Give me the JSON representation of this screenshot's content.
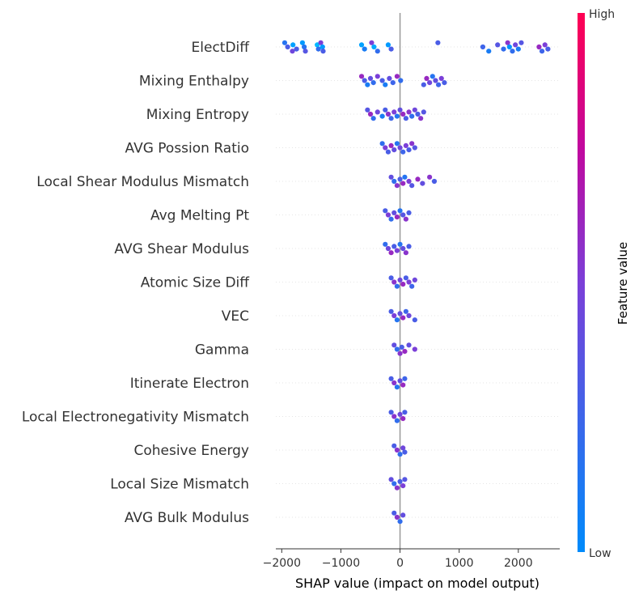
{
  "chart_data": {
    "type": "scatter",
    "xlabel": "SHAP value (impact on model output)",
    "xlim": [
      -2100,
      2700
    ],
    "xticks": [
      {
        "value": -2000,
        "label": "−2000"
      },
      {
        "value": -1000,
        "label": "−1000"
      },
      {
        "value": 0,
        "label": "0"
      },
      {
        "value": 1000,
        "label": "1000"
      },
      {
        "value": 2000,
        "label": "2000"
      }
    ],
    "colorbar": {
      "title": "Feature value",
      "high_label": "High",
      "low_label": "Low",
      "low_color": "#008bfb",
      "high_color": "#ff0052"
    },
    "features": [
      {
        "name": "ElectDiff",
        "points": [
          [
            -1950,
            0.15
          ],
          [
            -1900,
            0.3
          ],
          [
            -1820,
            0.45
          ],
          [
            -1810,
            -0.15
          ],
          [
            -1750,
            0.3
          ],
          [
            -1650,
            -0.1
          ],
          [
            -1620,
            0.15
          ],
          [
            -1600,
            0.35
          ],
          [
            -1400,
            -0.3
          ],
          [
            -1380,
            0.2
          ],
          [
            -1340,
            0.5
          ],
          [
            -1310,
            -0.1
          ],
          [
            -1300,
            0.3
          ],
          [
            -650,
            -0.15
          ],
          [
            -600,
            0.1
          ],
          [
            -480,
            0.5
          ],
          [
            -440,
            -0.2
          ],
          [
            -380,
            0.2
          ],
          [
            -200,
            -0.1
          ],
          [
            -150,
            0.3
          ],
          [
            640,
            0.3
          ],
          [
            1400,
            0.25
          ],
          [
            1500,
            0.1
          ],
          [
            1650,
            0.35
          ],
          [
            1750,
            0.2
          ],
          [
            1820,
            0.55
          ],
          [
            1850,
            -0.05
          ],
          [
            1900,
            0.2
          ],
          [
            1950,
            0.45
          ],
          [
            2000,
            0.1
          ],
          [
            2050,
            0.35
          ],
          [
            2350,
            0.6
          ],
          [
            2400,
            0.25
          ],
          [
            2450,
            0.5
          ],
          [
            2500,
            0.3
          ]
        ]
      },
      {
        "name": "Mixing Enthalpy",
        "points": [
          [
            -650,
            0.6
          ],
          [
            -600,
            0.3
          ],
          [
            -550,
            0.1
          ],
          [
            -500,
            0.4
          ],
          [
            -450,
            0.2
          ],
          [
            -380,
            0.5
          ],
          [
            -300,
            0.3
          ],
          [
            -250,
            0.1
          ],
          [
            -180,
            0.4
          ],
          [
            -120,
            0.25
          ],
          [
            -50,
            0.6
          ],
          [
            10,
            0.2
          ],
          [
            400,
            0.3
          ],
          [
            450,
            0.6
          ],
          [
            500,
            0.45
          ],
          [
            550,
            0.15
          ],
          [
            600,
            0.4
          ],
          [
            650,
            0.25
          ],
          [
            700,
            0.5
          ],
          [
            750,
            0.3
          ]
        ]
      },
      {
        "name": "Mixing Entropy",
        "points": [
          [
            -550,
            0.35
          ],
          [
            -500,
            0.6
          ],
          [
            -450,
            0.2
          ],
          [
            -380,
            0.45
          ],
          [
            -300,
            0.1
          ],
          [
            -250,
            0.3
          ],
          [
            -200,
            0.55
          ],
          [
            -150,
            0.25
          ],
          [
            -100,
            0.5
          ],
          [
            -50,
            0.15
          ],
          [
            0,
            0.4
          ],
          [
            50,
            0.6
          ],
          [
            100,
            0.3
          ],
          [
            150,
            0.55
          ],
          [
            200,
            0.2
          ],
          [
            250,
            0.45
          ],
          [
            300,
            0.3
          ],
          [
            350,
            0.55
          ],
          [
            400,
            0.35
          ]
        ]
      },
      {
        "name": "AVG Possion Ratio",
        "points": [
          [
            -300,
            0.2
          ],
          [
            -250,
            0.5
          ],
          [
            -200,
            0.3
          ],
          [
            -150,
            0.6
          ],
          [
            -100,
            0.4
          ],
          [
            -50,
            0.15
          ],
          [
            0,
            0.45
          ],
          [
            50,
            0.25
          ],
          [
            100,
            0.5
          ],
          [
            150,
            0.3
          ],
          [
            200,
            0.55
          ],
          [
            250,
            0.35
          ]
        ]
      },
      {
        "name": "Local Shear Modulus Mismatch",
        "points": [
          [
            -150,
            0.4
          ],
          [
            -100,
            0.2
          ],
          [
            -50,
            0.55
          ],
          [
            0,
            0.3
          ],
          [
            50,
            0.6
          ],
          [
            80,
            0.15
          ],
          [
            150,
            0.5
          ],
          [
            200,
            0.35
          ],
          [
            300,
            0.6
          ],
          [
            380,
            0.4
          ],
          [
            500,
            0.55
          ],
          [
            580,
            0.3
          ]
        ]
      },
      {
        "name": "Avg Melting Pt",
        "points": [
          [
            -250,
            0.3
          ],
          [
            -200,
            0.5
          ],
          [
            -150,
            0.2
          ],
          [
            -100,
            0.4
          ],
          [
            -50,
            0.6
          ],
          [
            0,
            0.15
          ],
          [
            50,
            0.35
          ],
          [
            100,
            0.55
          ],
          [
            150,
            0.3
          ]
        ]
      },
      {
        "name": "AVG Shear Modulus",
        "points": [
          [
            -250,
            0.2
          ],
          [
            -200,
            0.45
          ],
          [
            -150,
            0.6
          ],
          [
            -100,
            0.3
          ],
          [
            -50,
            0.5
          ],
          [
            0,
            0.15
          ],
          [
            50,
            0.4
          ],
          [
            100,
            0.55
          ],
          [
            150,
            0.3
          ]
        ]
      },
      {
        "name": "Atomic Size Diff",
        "points": [
          [
            -150,
            0.3
          ],
          [
            -100,
            0.55
          ],
          [
            -50,
            0.2
          ],
          [
            0,
            0.45
          ],
          [
            50,
            0.6
          ],
          [
            100,
            0.3
          ],
          [
            150,
            0.5
          ],
          [
            200,
            0.25
          ],
          [
            250,
            0.45
          ]
        ]
      },
      {
        "name": "VEC",
        "points": [
          [
            -150,
            0.3
          ],
          [
            -100,
            0.5
          ],
          [
            -50,
            0.15
          ],
          [
            0,
            0.4
          ],
          [
            50,
            0.6
          ],
          [
            100,
            0.25
          ],
          [
            150,
            0.45
          ],
          [
            250,
            0.3
          ]
        ]
      },
      {
        "name": "Gamma",
        "points": [
          [
            -100,
            0.4
          ],
          [
            -50,
            0.2
          ],
          [
            0,
            0.55
          ],
          [
            30,
            0.3
          ],
          [
            80,
            0.6
          ],
          [
            150,
            0.4
          ],
          [
            250,
            0.5
          ]
        ]
      },
      {
        "name": "Itinerate Electron",
        "points": [
          [
            -150,
            0.3
          ],
          [
            -100,
            0.55
          ],
          [
            -50,
            0.15
          ],
          [
            0,
            0.4
          ],
          [
            50,
            0.6
          ],
          [
            80,
            0.25
          ]
        ]
      },
      {
        "name": "Local Electronegativity Mismatch",
        "points": [
          [
            -150,
            0.3
          ],
          [
            -100,
            0.55
          ],
          [
            -50,
            0.2
          ],
          [
            0,
            0.45
          ],
          [
            50,
            0.6
          ],
          [
            80,
            0.3
          ]
        ]
      },
      {
        "name": "Cohesive Energy",
        "points": [
          [
            -100,
            0.3
          ],
          [
            -50,
            0.55
          ],
          [
            0,
            0.2
          ],
          [
            50,
            0.45
          ],
          [
            80,
            0.3
          ]
        ]
      },
      {
        "name": "Local Size Mismatch",
        "points": [
          [
            -150,
            0.4
          ],
          [
            -100,
            0.2
          ],
          [
            -50,
            0.55
          ],
          [
            0,
            0.3
          ],
          [
            50,
            0.5
          ],
          [
            80,
            0.35
          ]
        ]
      },
      {
        "name": "AVG Bulk Modulus",
        "points": [
          [
            -100,
            0.3
          ],
          [
            -50,
            0.55
          ],
          [
            0,
            0.2
          ],
          [
            50,
            0.4
          ]
        ]
      }
    ]
  }
}
